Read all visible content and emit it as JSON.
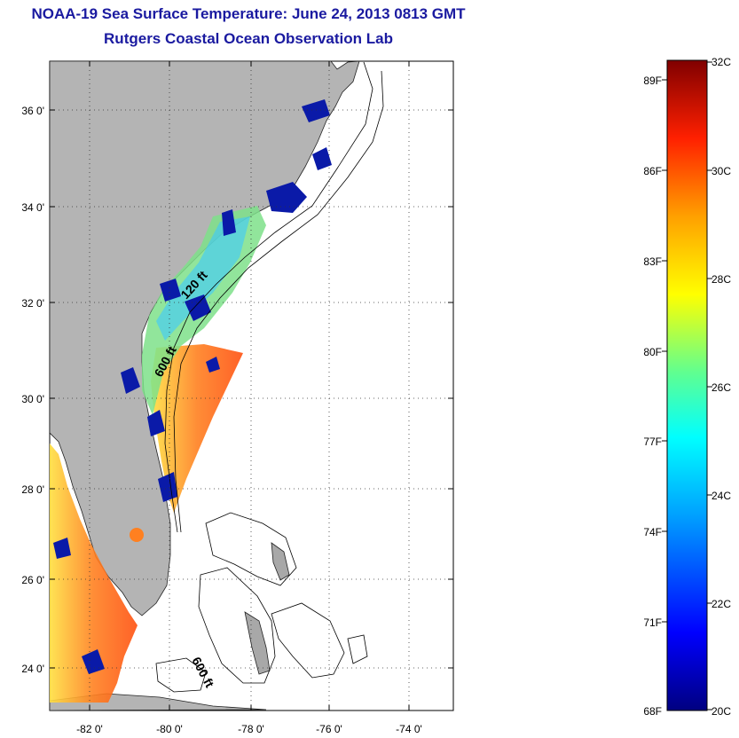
{
  "title_line1": "NOAA-19 Sea Surface Temperature:  June 24, 2013 0813 GMT",
  "title_line2": "Rutgers Coastal Ocean Observation Lab",
  "map": {
    "lon_ticks": [
      "-82 0'",
      "-80 0'",
      "-78 0'",
      "-76 0'",
      "-74 0'"
    ],
    "lat_ticks": [
      "36 0'",
      "34 0'",
      "32 0'",
      "30 0'",
      "28 0'",
      "26 0'",
      "24 0'"
    ],
    "contour_labels": [
      "120 ft",
      "600 ft",
      "600 ft"
    ],
    "colors": {
      "land": "#b4b4b4",
      "ocean_nodata": "#ffffff",
      "cloud_low": "#0a1aa8"
    }
  },
  "colorbar": {
    "celsius_labels": [
      "32C",
      "30C",
      "28C",
      "26C",
      "24C",
      "22C",
      "20C"
    ],
    "fahrenheit_labels": [
      "89F",
      "86F",
      "83F",
      "80F",
      "77F",
      "74F",
      "71F",
      "68F"
    ],
    "min_c": 20,
    "max_c": 32,
    "gradient": [
      "#000080",
      "#0000ff",
      "#00a0ff",
      "#00ffff",
      "#60ff90",
      "#ffff00",
      "#ffa000",
      "#ff2000",
      "#800000"
    ]
  }
}
